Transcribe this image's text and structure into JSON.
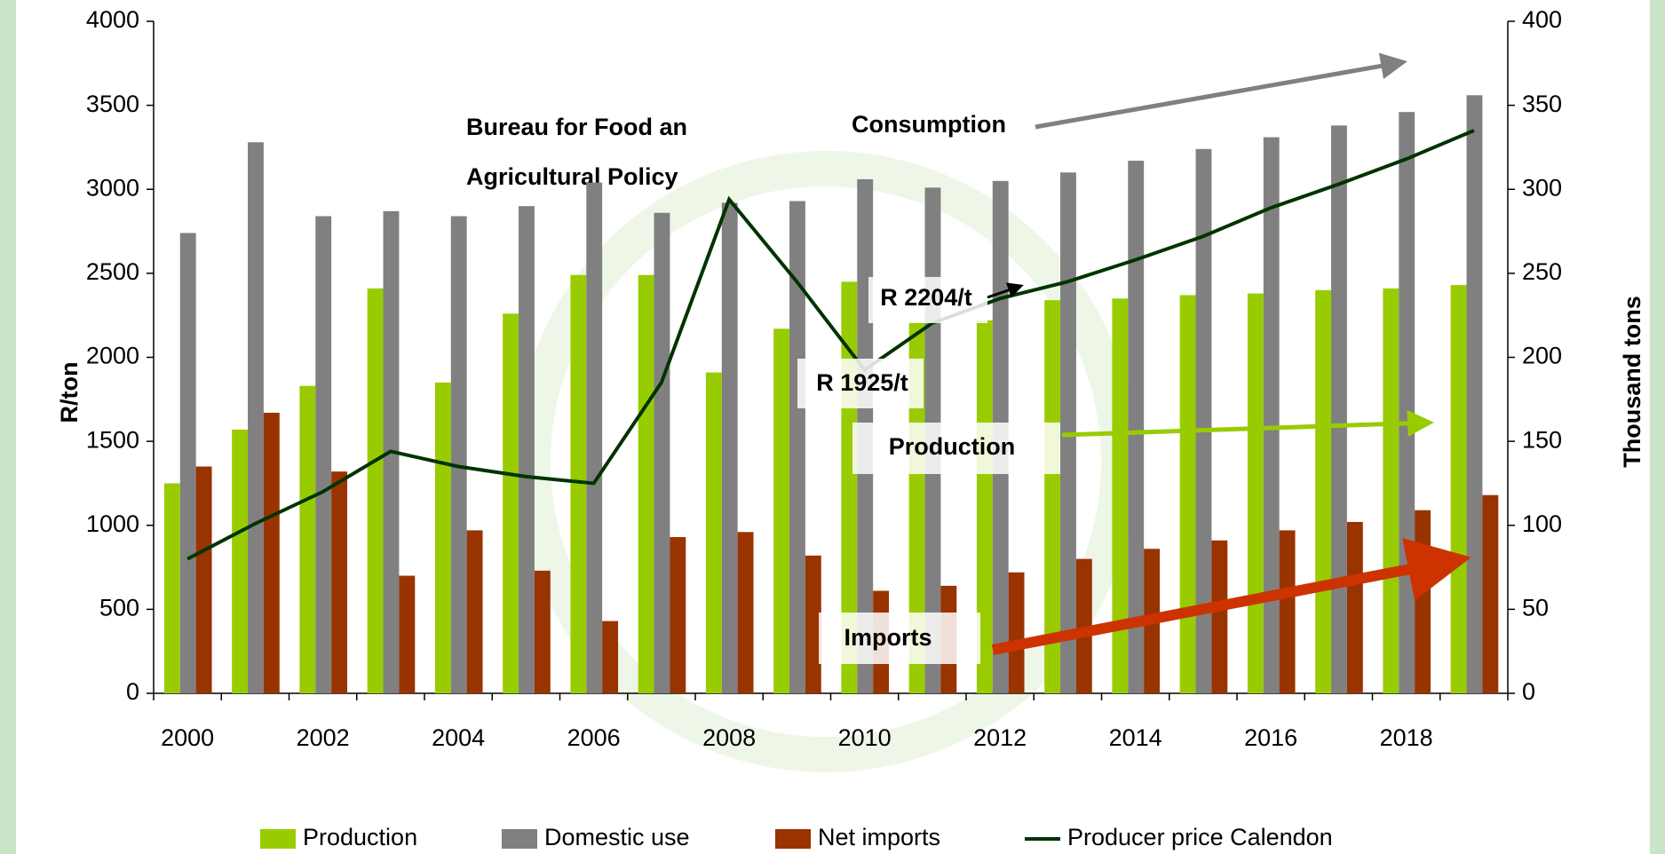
{
  "chart_data": {
    "type": "bar-line",
    "categories": [
      2000,
      null,
      2002,
      null,
      2004,
      null,
      2006,
      null,
      2008,
      null,
      2010,
      null,
      2012,
      null,
      2014,
      null,
      2016,
      null,
      2018,
      null
    ],
    "series": [
      {
        "name": "Production",
        "color": "#99cc00",
        "axis": "y2",
        "kind": "bar",
        "values": [
          125,
          157,
          183,
          241,
          185,
          226,
          249,
          249,
          191,
          217,
          245,
          221,
          222,
          234,
          235,
          237,
          238,
          240,
          241,
          243
        ]
      },
      {
        "name": "Domestic use",
        "color": "#808080",
        "axis": "y2",
        "kind": "bar",
        "values": [
          274,
          328,
          284,
          287,
          284,
          290,
          304,
          286,
          292,
          293,
          306,
          301,
          305,
          310,
          317,
          324,
          331,
          338,
          346,
          356
        ]
      },
      {
        "name": "Net imports",
        "color": "#993300",
        "axis": "y2",
        "kind": "bar",
        "values": [
          135,
          167,
          132,
          70,
          97,
          73,
          43,
          93,
          96,
          82,
          61,
          64,
          72,
          80,
          86,
          91,
          97,
          102,
          109,
          118
        ]
      },
      {
        "name": "Producer price Calendon",
        "color": "#003300",
        "kind": "line",
        "values": [
          800,
          1010,
          1200,
          1440,
          1350,
          1290,
          1250,
          1850,
          2940,
          2450,
          1925,
          2204,
          2350,
          2450,
          2580,
          2720,
          2890,
          3030,
          3180,
          3350
        ]
      }
    ],
    "ylim": [
      0,
      4000
    ],
    "yticks": [
      0,
      500,
      1000,
      1500,
      2000,
      2500,
      3000,
      3500,
      4000
    ],
    "y2lim": [
      0,
      400
    ],
    "y2ticks": [
      0,
      50,
      100,
      150,
      200,
      250,
      300,
      350,
      400
    ],
    "ylabel": "R/ton",
    "y2label": "Thousand tons",
    "annotations": [
      {
        "text": "Consumption",
        "color": "#808080"
      },
      {
        "text": "Production",
        "color": "#99cc00"
      },
      {
        "text": "Imports",
        "color": "#cc3300"
      },
      {
        "text": "R 2204/t",
        "color": "#000000"
      },
      {
        "text": "R 1925/t",
        "color": "#000000"
      }
    ],
    "watermark": [
      "Bureau for Food an",
      "Agricultural Policy"
    ],
    "legend": "bottom"
  }
}
